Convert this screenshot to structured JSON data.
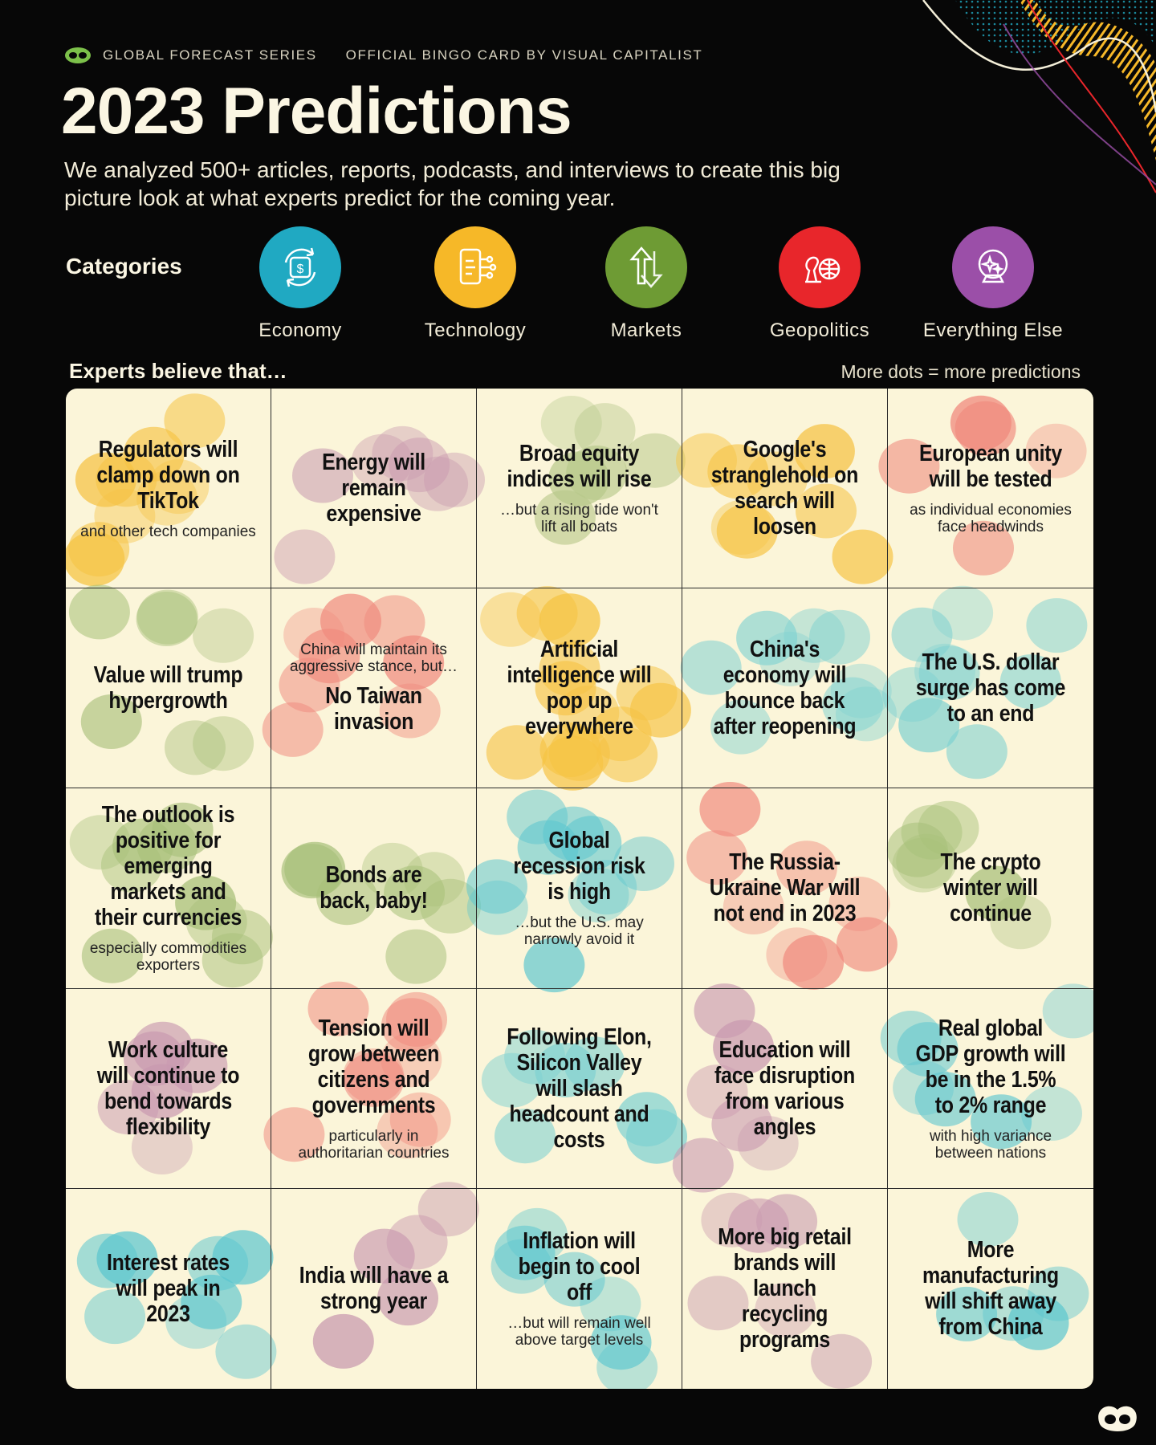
{
  "header": {
    "series": "GLOBAL FORECAST SERIES",
    "byline": "OFFICIAL BINGO CARD BY VISUAL CAPITALIST",
    "title": "2023 Predictions",
    "subtitle": "We analyzed 500+ articles, reports, podcasts, and interviews to create this big picture look at what experts predict for the coming year."
  },
  "categories": {
    "label": "Categories",
    "items": [
      {
        "name": "Economy",
        "color": "#20a9c2",
        "icon": "dollar-cycle-icon"
      },
      {
        "name": "Technology",
        "color": "#f6b828",
        "icon": "circuit-phone-icon"
      },
      {
        "name": "Markets",
        "color": "#6e9b34",
        "icon": "up-down-arrows-icon"
      },
      {
        "name": "Geopolitics",
        "color": "#e8262b",
        "icon": "chess-globe-icon"
      },
      {
        "name": "Everything Else",
        "color": "#9b4fa8",
        "icon": "crystal-ball-icon"
      }
    ]
  },
  "board": {
    "intro": "Experts believe that…",
    "legend": "More dots = more predictions",
    "cells": [
      {
        "head": "Regulators will clamp down on TikTok",
        "note": "and other tech companies"
      },
      {
        "head": "Energy will remain expensive"
      },
      {
        "head": "Broad equity indices will rise",
        "note": "…but a rising tide won't lift all boats"
      },
      {
        "head": "Google's stranglehold on search will loosen"
      },
      {
        "head": "European unity will be tested",
        "note": "as individual economies face headwinds"
      },
      {
        "head": "Value will trump hypergrowth"
      },
      {
        "pre": "China will maintain its aggressive stance, but…",
        "head": "No Taiwan invasion"
      },
      {
        "head": "Artificial intelligence will pop up everywhere"
      },
      {
        "head": "China's economy will bounce back after reopening"
      },
      {
        "head": "The U.S. dollar surge has come to an end"
      },
      {
        "head": "The outlook is positive for emerging markets and their currencies",
        "note": "especially commodities exporters"
      },
      {
        "head": "Bonds are back, baby!"
      },
      {
        "head": "Global recession risk is high",
        "note": "…but the U.S. may narrowly avoid it"
      },
      {
        "head": "The Russia-Ukraine War will not end in 2023"
      },
      {
        "head": "The crypto winter will continue"
      },
      {
        "head": "Work culture will continue to bend towards flexibility"
      },
      {
        "head": "Tension will grow between citizens and governments",
        "note": "particularly in authoritarian countries"
      },
      {
        "head": "Following Elon, Silicon Valley will slash headcount and costs"
      },
      {
        "head": "Education will face disruption from various angles"
      },
      {
        "head": "Real global GDP growth will be in the 1.5% to 2% range",
        "note": "with high variance between nations"
      },
      {
        "head": "Interest rates will peak in 2023"
      },
      {
        "head": "India will have a strong year"
      },
      {
        "head": "Inflation will begin to cool off",
        "note": "…but will remain well above target levels"
      },
      {
        "head": "More big retail brands will launch recycling programs"
      },
      {
        "head": "More manufacturing will shift away from China"
      }
    ],
    "dot_counts": [
      9,
      7,
      6,
      8,
      5,
      7,
      8,
      14,
      9,
      9,
      10,
      8,
      10,
      8,
      7,
      6,
      9,
      7,
      6,
      7,
      8,
      5,
      7,
      6,
      5
    ],
    "dot_colors": [
      "#f6c344",
      "#c99ab0",
      "#b7c88a",
      "#f6c344",
      "#f08a7e",
      "#a8c07a",
      "#f08a7e",
      "#f6c344",
      "#7dd1d1",
      "#7dd1d1",
      "#a8c07a",
      "#a8c07a",
      "#5bc6cf",
      "#f08a7e",
      "#a8c07a",
      "#c99ab0",
      "#f08a7e",
      "#7dd1d1",
      "#c99ab0",
      "#5bc6cf",
      "#5bc6cf",
      "#c99ab0",
      "#5bc6cf",
      "#c99ab0",
      "#5bc6cf"
    ]
  }
}
